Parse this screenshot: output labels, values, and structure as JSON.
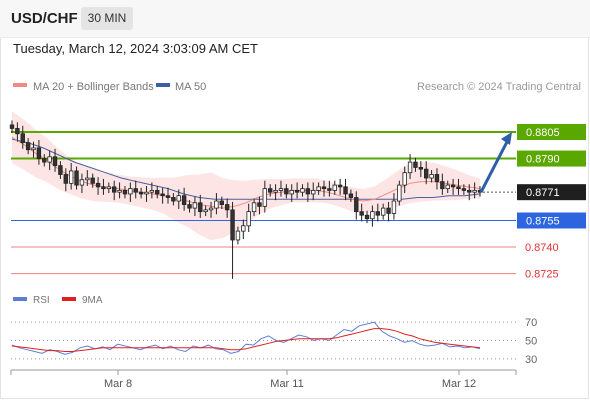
{
  "header": {
    "symbol": "USD/CHF",
    "period": "30 MIN"
  },
  "timestamp": "Tuesday, March 12, 2024 3:03:09 AM CET",
  "legend": {
    "ma20": "MA 20 + Bollinger Bands",
    "ma50": "MA 50",
    "credit": "Research © 2024 Trading Central",
    "rsi": "RSI",
    "rsi_ma": "9MA"
  },
  "colors": {
    "resistance": "#5aa700",
    "pivot": "#2d65e0",
    "support": "#f08080",
    "ma20": "#f08a80",
    "ma50": "#4a5fa0",
    "bands": "#fde0e0",
    "candle_up": "#ffffff",
    "candle_down": "#333333",
    "arrow": "#2d5ea8",
    "rsi": "#5b7fd6",
    "rsi_ma": "#e02020"
  },
  "chart_data": [
    {
      "type": "candlestick",
      "instrument": "USD/CHF",
      "timeframe": "30 MIN",
      "x_ticks": [
        "Mar 8",
        "Mar 11",
        "Mar 12"
      ],
      "price_range": [
        0.871,
        0.8824
      ],
      "levels": [
        {
          "kind": "resistance",
          "label": "0.8805",
          "value": 0.8805
        },
        {
          "kind": "resistance",
          "label": "0.8790",
          "value": 0.879
        },
        {
          "kind": "current",
          "label": "0.8771",
          "value": 0.8771
        },
        {
          "kind": "pivot",
          "label": "0.8755",
          "value": 0.8755
        },
        {
          "kind": "support",
          "label": "0.8740",
          "value": 0.874
        },
        {
          "kind": "support",
          "label": "0.8725",
          "value": 0.8725
        }
      ],
      "close_path": [
        0.8807,
        0.8804,
        0.8799,
        0.8795,
        0.8796,
        0.879,
        0.8788,
        0.8791,
        0.8786,
        0.8781,
        0.8776,
        0.8783,
        0.8775,
        0.8778,
        0.8779,
        0.8776,
        0.8774,
        0.8773,
        0.8774,
        0.8771,
        0.8772,
        0.877,
        0.8773,
        0.8771,
        0.877,
        0.8771,
        0.8772,
        0.877,
        0.8769,
        0.8768,
        0.8766,
        0.8769,
        0.8764,
        0.8762,
        0.8765,
        0.876,
        0.8761,
        0.8762,
        0.8766,
        0.8764,
        0.8761,
        0.8744,
        0.8749,
        0.8752,
        0.876,
        0.8765,
        0.8763,
        0.8773,
        0.8771,
        0.8772,
        0.8773,
        0.877,
        0.8772,
        0.8771,
        0.8773,
        0.877,
        0.8772,
        0.8774,
        0.8773,
        0.8772,
        0.8775,
        0.8774,
        0.877,
        0.8768,
        0.876,
        0.8758,
        0.8756,
        0.876,
        0.8758,
        0.8762,
        0.8759,
        0.8766,
        0.8775,
        0.8782,
        0.8788,
        0.8785,
        0.8784,
        0.8779,
        0.8781,
        0.8777,
        0.8773,
        0.8775,
        0.8774,
        0.8773,
        0.8772,
        0.8771,
        0.8772,
        0.8771
      ],
      "ma20_path": [
        0.8802,
        0.8798,
        0.8793,
        0.8789,
        0.8784,
        0.878,
        0.8777,
        0.8775,
        0.8774,
        0.8773,
        0.8772,
        0.8771,
        0.877,
        0.8769,
        0.8767,
        0.8766,
        0.8764,
        0.8763,
        0.8762,
        0.8763,
        0.8765,
        0.8768,
        0.877,
        0.8771,
        0.8772,
        0.8772,
        0.8772,
        0.8771,
        0.8769,
        0.8767,
        0.8766,
        0.8767,
        0.877,
        0.8773,
        0.8776,
        0.8777,
        0.8777,
        0.8776,
        0.8775,
        0.8774,
        0.8773
      ],
      "ma50_path": [
        0.8801,
        0.8799,
        0.8796,
        0.8792,
        0.8788,
        0.8785,
        0.8782,
        0.8779,
        0.8777,
        0.8775,
        0.8773,
        0.877,
        0.8768,
        0.8767,
        0.8767,
        0.8767,
        0.8767,
        0.8767,
        0.8767,
        0.8767,
        0.8767,
        0.8767,
        0.8767,
        0.8767,
        0.8767,
        0.8767,
        0.8768,
        0.8768,
        0.8769,
        0.8769,
        0.877
      ],
      "arrow": {
        "from": 0.8771,
        "to": 0.8805
      }
    },
    {
      "type": "line",
      "name": "RSI",
      "y_ticks": [
        70,
        50,
        30
      ],
      "ylim": [
        20,
        80
      ],
      "series": [
        {
          "name": "RSI",
          "values": [
            45,
            42,
            40,
            38,
            36,
            40,
            38,
            35,
            37,
            42,
            44,
            41,
            43,
            40,
            46,
            44,
            42,
            40,
            43,
            45,
            41,
            44,
            40,
            38,
            44,
            42,
            45,
            41,
            40,
            36,
            38,
            46,
            45,
            52,
            55,
            50,
            48,
            52,
            56,
            54,
            50,
            52,
            50,
            56,
            62,
            60,
            66,
            68,
            70,
            60,
            55,
            52,
            48,
            50,
            46,
            44,
            45,
            47,
            43,
            44,
            42,
            43,
            41
          ]
        },
        {
          "name": "9MA",
          "values": [
            44,
            43,
            42,
            41,
            40,
            39,
            39,
            38,
            38,
            39,
            40,
            41,
            42,
            42,
            42,
            42,
            42,
            42,
            42,
            42,
            42,
            42,
            42,
            42,
            42,
            42,
            42,
            42,
            41,
            40,
            40,
            41,
            43,
            45,
            47,
            49,
            50,
            51,
            52,
            52,
            52,
            52,
            52,
            53,
            55,
            57,
            59,
            61,
            63,
            63,
            62,
            60,
            57,
            55,
            52,
            50,
            48,
            47,
            46,
            45,
            44,
            43,
            42
          ]
        }
      ]
    }
  ]
}
